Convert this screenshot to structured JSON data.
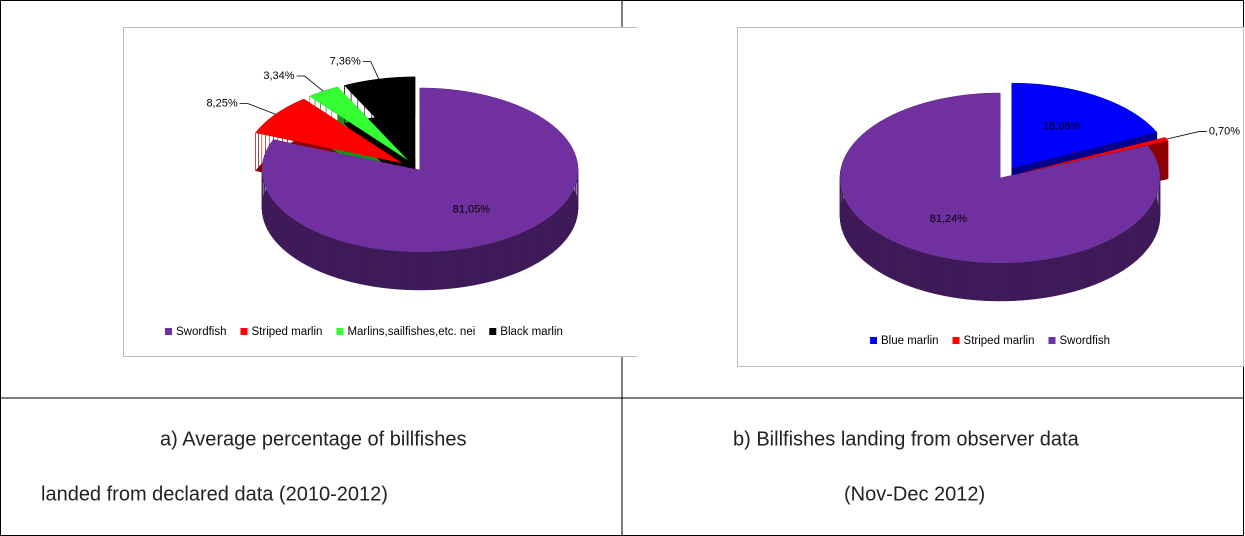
{
  "chart_data": [
    {
      "type": "pie",
      "caption": [
        "a) Average percentage of billfishes",
        "landed from declared data (2010-2012)"
      ],
      "labels": [
        "Swordfish",
        "Striped marlin",
        "Marlins,sailfishes,etc. nei",
        "Black marlin"
      ],
      "values": [
        81.05,
        8.25,
        3.34,
        7.36
      ],
      "value_labels": [
        "81,05%",
        "8,25%",
        "3,34%",
        "7,36%"
      ],
      "colors": [
        "#7030a0",
        "#ff0000",
        "#33ff33",
        "#000000"
      ],
      "legend": "bottom"
    },
    {
      "type": "pie",
      "caption": [
        "b) Billfishes landing from observer data",
        "(Nov-Dec 2012)"
      ],
      "labels": [
        "Blue marlin",
        "Striped marlin",
        "Swordfish"
      ],
      "values": [
        18.06,
        0.7,
        81.24
      ],
      "value_labels": [
        "18,06%",
        "0,70%",
        "81,24%"
      ],
      "colors": [
        "#0000ff",
        "#ff0000",
        "#7030a0"
      ],
      "legend": "bottom"
    }
  ]
}
